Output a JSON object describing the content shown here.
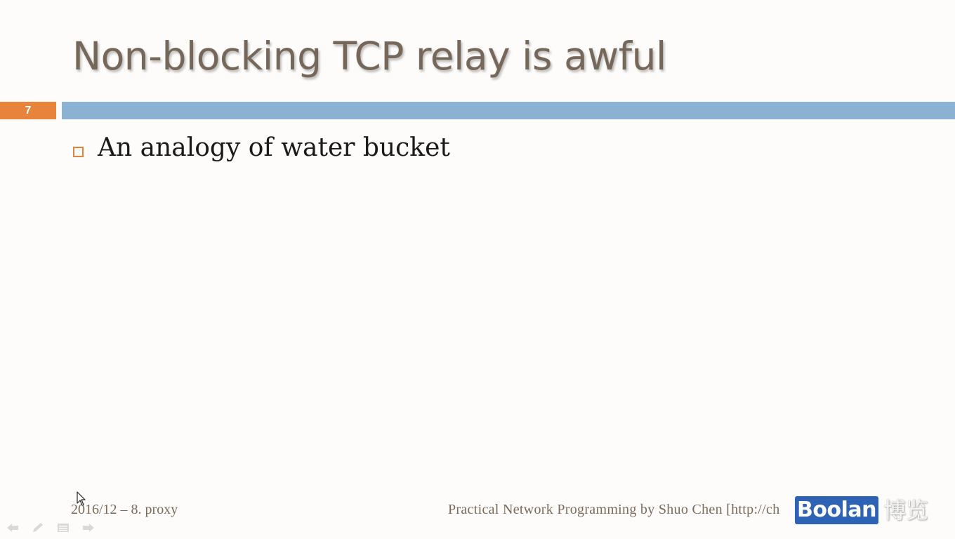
{
  "slide": {
    "title": "Non-blocking TCP relay is awful",
    "number": "7",
    "bullets": [
      "An analogy of water bucket"
    ]
  },
  "footer": {
    "left": "2016/12 – 8. proxy",
    "right": "Practical Network Programming by Shuo Chen [http://ch"
  },
  "watermark": {
    "brand": "Boolan",
    "chinese": "博览"
  },
  "colors": {
    "title": "#76675b",
    "accent_orange": "#e8833c",
    "accent_blue": "#8bb1d3",
    "logo_blue": "#2d62b5"
  },
  "icons": {
    "cursor": "mouse-pointer-icon",
    "nav": [
      "arrow-left-icon",
      "pen-icon",
      "menu-icon",
      "arrow-right-icon"
    ]
  }
}
